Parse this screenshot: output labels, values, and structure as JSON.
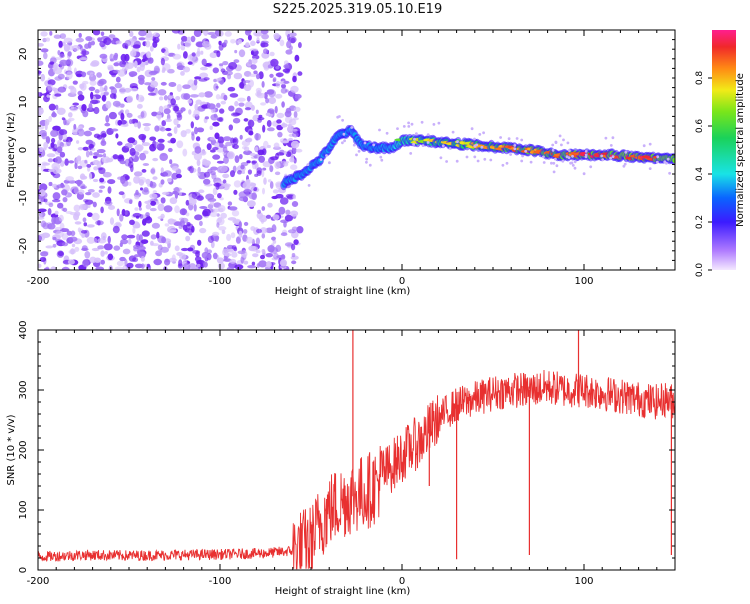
{
  "figure_title": "S225.2025.319.05.10.E19",
  "colors": {
    "spec_dots": "#8a3cf0",
    "ridge_low": "#3a17ff",
    "ridge_mid": "#22e0e6",
    "ridge_high": "#e23b3b",
    "snr_line": "#e83030",
    "axis": "#000000"
  },
  "chart_data": [
    {
      "type": "heatmap",
      "title": "",
      "xlabel": "Height of straight line (km)",
      "ylabel": "Frequency (Hz)",
      "xlim": [
        -200,
        150
      ],
      "ylim": [
        -25,
        25
      ],
      "xticks": [
        -200,
        -100,
        0,
        100
      ],
      "yticks": [
        -20,
        -10,
        0,
        10,
        20
      ],
      "colorbar": {
        "label": "Normalized spectral amplitude",
        "range": [
          0,
          1
        ],
        "ticks": [
          0.0,
          0.2,
          0.4,
          0.6,
          0.8
        ],
        "tick_labels": [
          "0.0",
          "0.2",
          "0.4",
          "0.6",
          "0.8"
        ]
      },
      "noise_region_x": [
        -200,
        -60
      ],
      "ridge": {
        "x": [
          -65,
          -55,
          -45,
          -35,
          -28,
          -22,
          -15,
          -5,
          0,
          10,
          25,
          40,
          55,
          70,
          85,
          100,
          115,
          130,
          150
        ],
        "frequency": [
          -7,
          -5,
          -2,
          3,
          4,
          1,
          0.5,
          0.3,
          2,
          2,
          1.5,
          1,
          0.5,
          0,
          -1,
          -1,
          -1,
          -1.5,
          -2
        ],
        "amplitude": [
          0.2,
          0.22,
          0.25,
          0.3,
          0.32,
          0.35,
          0.45,
          0.5,
          0.6,
          0.65,
          0.7,
          0.72,
          0.78,
          0.8,
          0.82,
          0.85,
          0.85,
          0.88,
          0.85
        ]
      }
    },
    {
      "type": "line",
      "title": "",
      "xlabel": "Height of straight line (km)",
      "ylabel": "SNR (10 * v/v)",
      "xlim": [
        -200,
        150
      ],
      "ylim": [
        0,
        400
      ],
      "xticks": [
        -200,
        -100,
        0,
        100
      ],
      "yticks": [
        0,
        100,
        200,
        300,
        400
      ],
      "series": [
        {
          "name": "SNR",
          "x": [
            -200,
            -175,
            -150,
            -125,
            -100,
            -75,
            -60,
            -50,
            -45,
            -40,
            -35,
            -30,
            -25,
            -20,
            -15,
            -10,
            -5,
            0,
            5,
            10,
            15,
            20,
            25,
            30,
            40,
            50,
            60,
            70,
            80,
            90,
            100,
            110,
            120,
            130,
            140,
            145,
            150
          ],
          "value": [
            22,
            25,
            24,
            25,
            26,
            28,
            32,
            45,
            80,
            100,
            110,
            120,
            125,
            130,
            140,
            160,
            175,
            190,
            205,
            215,
            235,
            250,
            265,
            275,
            285,
            295,
            300,
            300,
            305,
            300,
            300,
            295,
            290,
            285,
            280,
            285,
            280
          ]
        }
      ],
      "spikes": [
        {
          "x": -27,
          "value": 400
        },
        {
          "x": 97,
          "value": 400
        },
        {
          "x": 15,
          "value": 140
        },
        {
          "x": 30,
          "value": 18
        },
        {
          "x": 70,
          "value": 25
        },
        {
          "x": 148,
          "value": 25
        }
      ]
    }
  ]
}
